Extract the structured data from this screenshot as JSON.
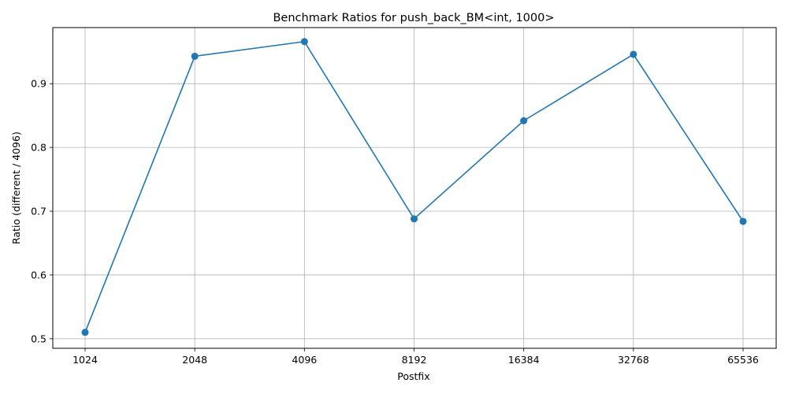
{
  "chart_data": {
    "type": "line",
    "title": "Benchmark Ratios for push_back_BM<int, 1000>",
    "xlabel": "Postfix",
    "ylabel": "Ratio (different / 4096)",
    "categories": [
      "1024",
      "2048",
      "4096",
      "8192",
      "16384",
      "32768",
      "65536"
    ],
    "series": [
      {
        "values": [
          0.51,
          0.943,
          0.966,
          0.688,
          0.842,
          0.946,
          0.684
        ]
      }
    ],
    "ylim": [
      0.485,
      0.988
    ],
    "yticks": [
      "0.5",
      "0.6",
      "0.7",
      "0.8",
      "0.9"
    ],
    "grid": true,
    "marker": "circle",
    "color": "#1f77b4"
  }
}
